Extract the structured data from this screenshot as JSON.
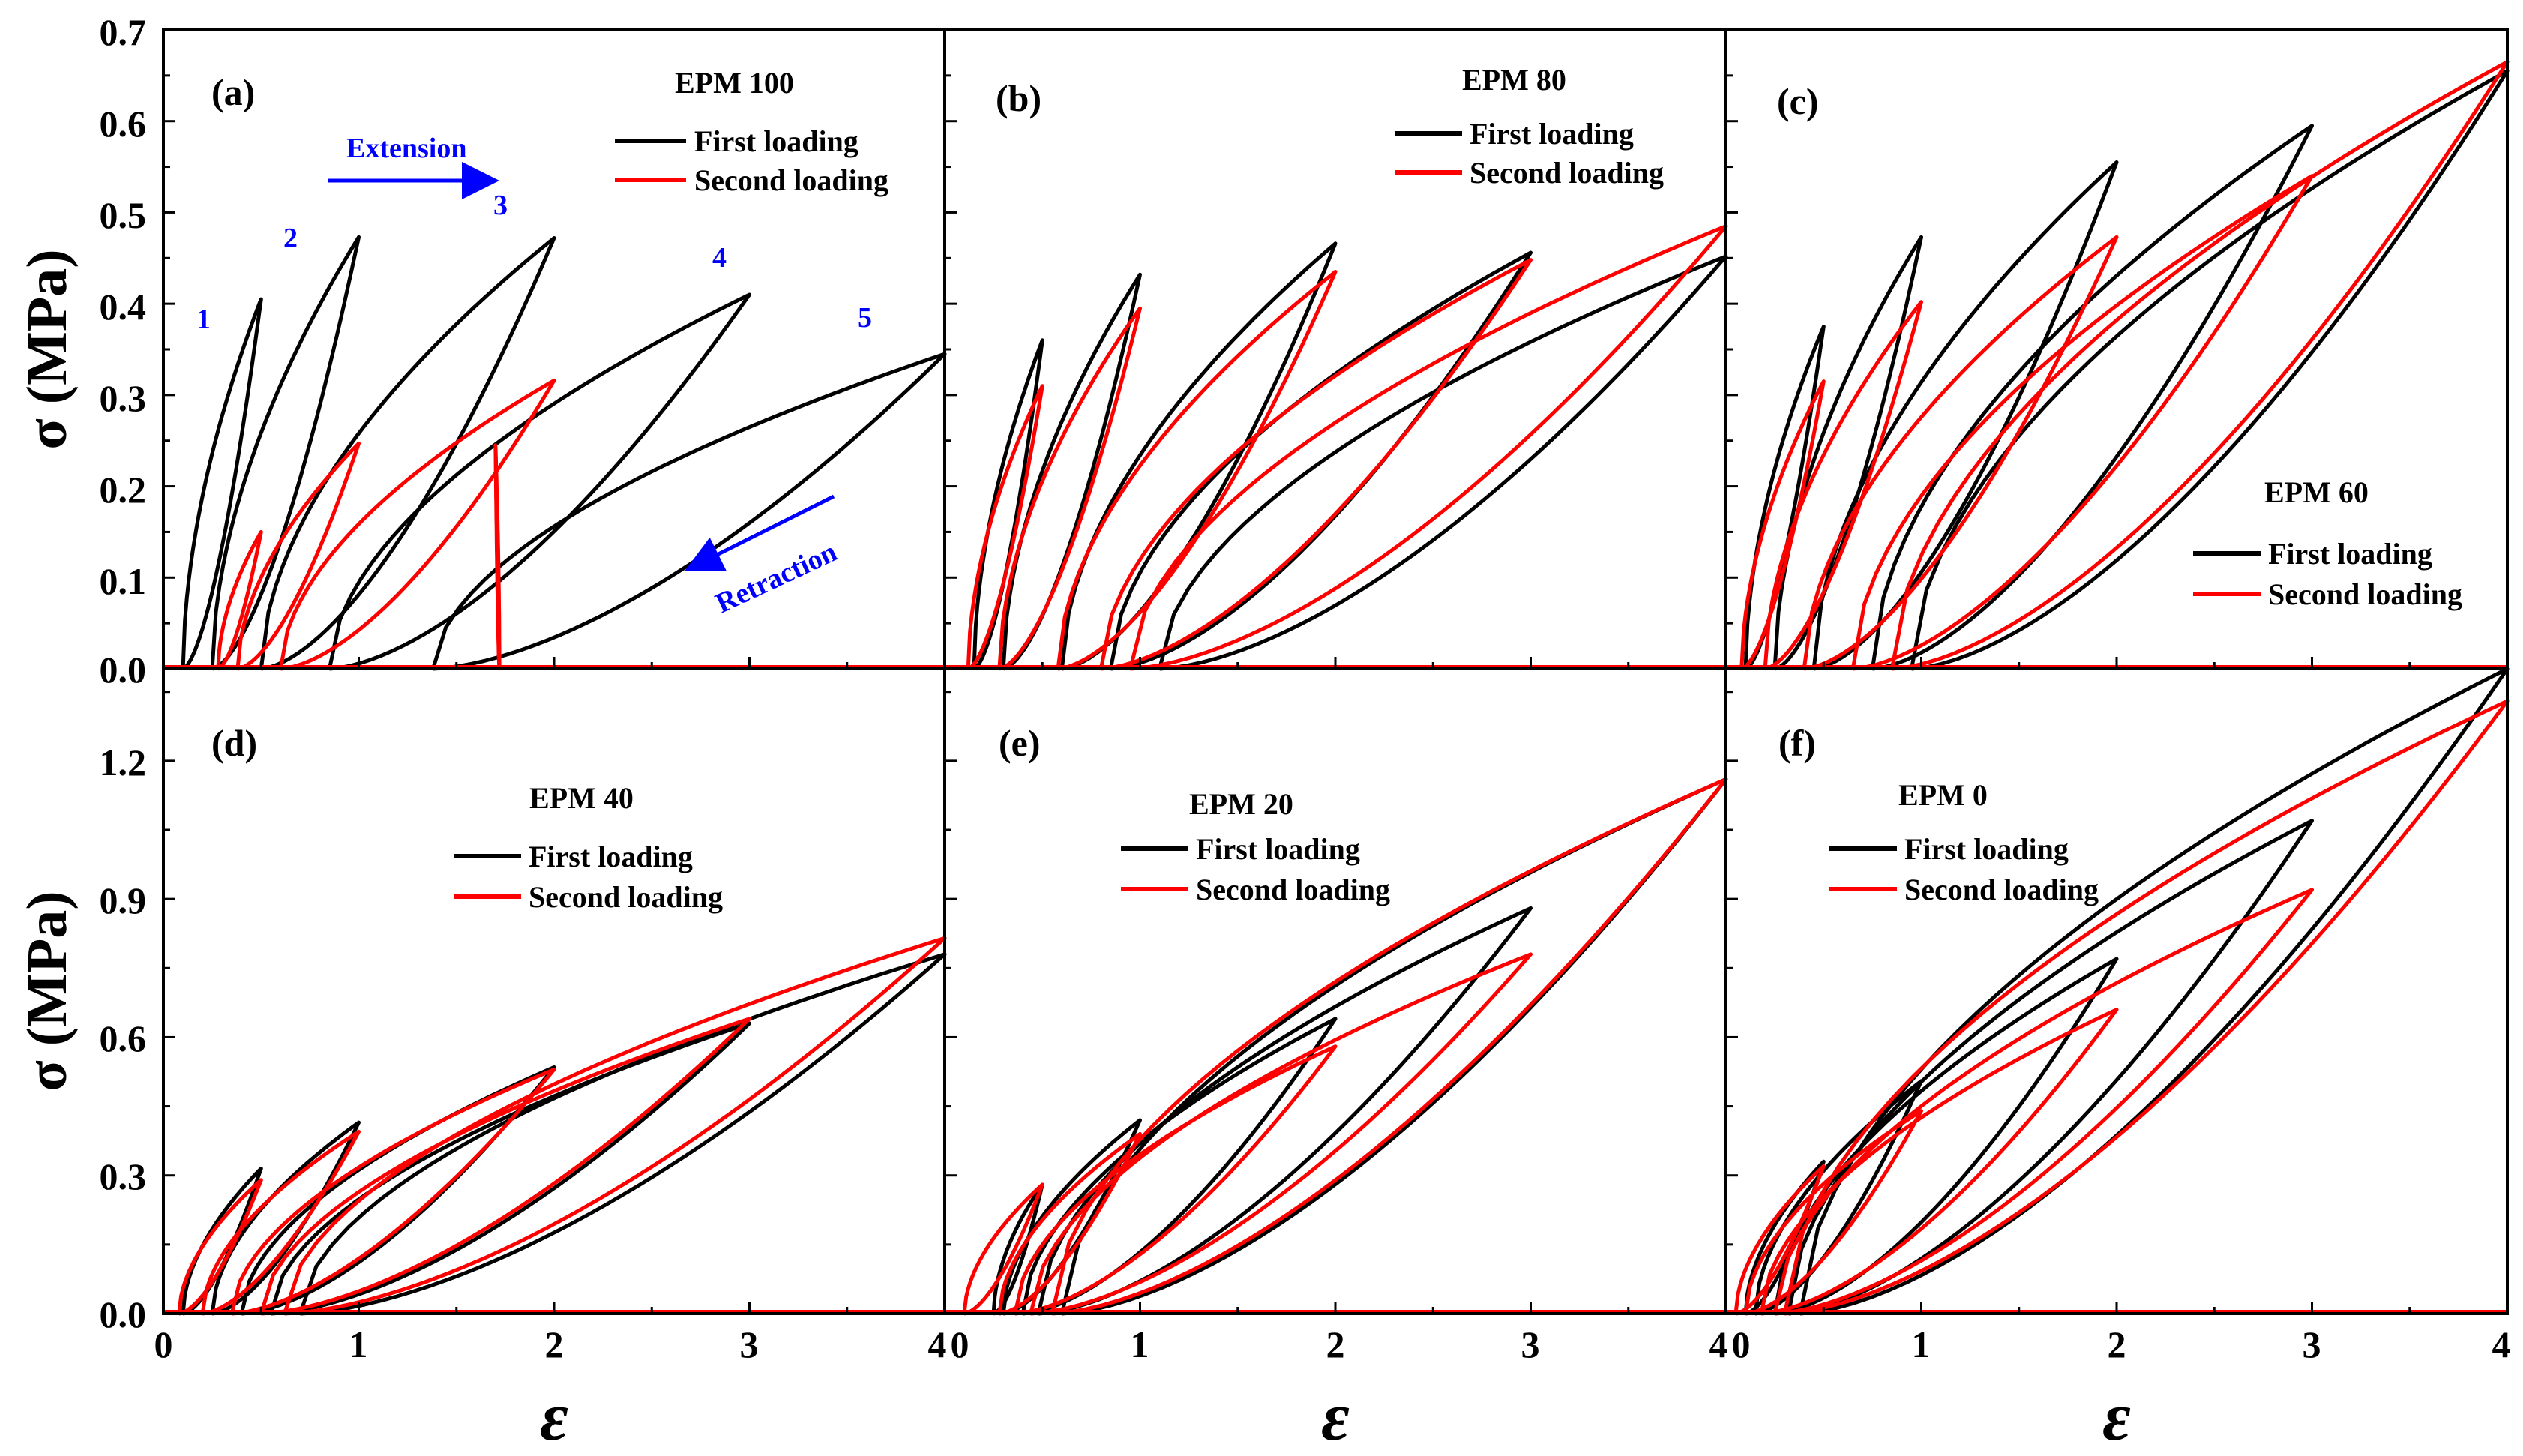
{
  "figure": {
    "ylabel": "σ (MPa)",
    "xlabel": "ε",
    "line_colors": {
      "first": "#000000",
      "second": "#ff0000",
      "annotation": "#0000ff"
    }
  },
  "chart_data": [
    {
      "id": "a",
      "type": "line",
      "panel_label": "(a)",
      "title": "EPM 100",
      "xlim": [
        0,
        4
      ],
      "ylim": [
        0,
        0.7
      ],
      "yticks": [
        "0.0",
        "0.1",
        "0.2",
        "0.3",
        "0.4",
        "0.5",
        "0.6",
        "0.7"
      ],
      "xticks": [
        "0",
        "1",
        "2",
        "3",
        "4"
      ],
      "legend": [
        "First loading",
        "Second loading"
      ],
      "annotations": {
        "extension": "Extension",
        "retraction": "Retraction",
        "cycle_labels": [
          "1",
          "2",
          "3",
          "4",
          "5"
        ]
      },
      "first_cycles": [
        {
          "strain": 0.5,
          "stress": 0.405,
          "residual": 0.1
        },
        {
          "strain": 1.0,
          "stress": 0.473,
          "residual": 0.25
        },
        {
          "strain": 2.0,
          "stress": 0.472,
          "residual": 0.5
        },
        {
          "strain": 3.0,
          "stress": 0.41,
          "residual": 0.85
        },
        {
          "strain": 4.0,
          "stress": 0.345,
          "residual": 1.38
        }
      ],
      "second_cycles": [
        {
          "strain": 0.5,
          "stress": 0.15,
          "residual": 0.28
        },
        {
          "strain": 1.0,
          "stress": 0.247,
          "residual": 0.38
        },
        {
          "strain": 2.0,
          "stress": 0.316,
          "residual": 0.6
        },
        {
          "strain": 1.7,
          "stress": 0.245,
          "residual": 1.72
        }
      ]
    },
    {
      "id": "b",
      "type": "line",
      "panel_label": "(b)",
      "title": "EPM  80",
      "xlim": [
        0,
        4
      ],
      "ylim": [
        0,
        0.7
      ],
      "legend": [
        "First loading",
        "Second loading"
      ],
      "first_cycles": [
        {
          "strain": 0.5,
          "stress": 0.36,
          "residual": 0.15
        },
        {
          "strain": 1.0,
          "stress": 0.432,
          "residual": 0.3
        },
        {
          "strain": 2.0,
          "stress": 0.466,
          "residual": 0.6
        },
        {
          "strain": 3.0,
          "stress": 0.456,
          "residual": 0.85
        },
        {
          "strain": 4.0,
          "stress": 0.452,
          "residual": 1.1
        }
      ],
      "second_cycles": [
        {
          "strain": 0.5,
          "stress": 0.31,
          "residual": 0.12
        },
        {
          "strain": 1.0,
          "stress": 0.395,
          "residual": 0.28
        },
        {
          "strain": 2.0,
          "stress": 0.435,
          "residual": 0.58
        },
        {
          "strain": 3.0,
          "stress": 0.448,
          "residual": 0.8
        },
        {
          "strain": 4.0,
          "stress": 0.485,
          "residual": 0.95
        }
      ]
    },
    {
      "id": "c",
      "type": "line",
      "panel_label": "(c)",
      "title": "EPM  60",
      "xlim": [
        0,
        4
      ],
      "ylim": [
        0,
        0.7
      ],
      "legend": [
        "First loading",
        "Second loading"
      ],
      "first_cycles": [
        {
          "strain": 0.5,
          "stress": 0.375,
          "residual": 0.1
        },
        {
          "strain": 1.0,
          "stress": 0.473,
          "residual": 0.25
        },
        {
          "strain": 2.0,
          "stress": 0.555,
          "residual": 0.45
        },
        {
          "strain": 3.0,
          "stress": 0.595,
          "residual": 0.75
        },
        {
          "strain": 4.0,
          "stress": 0.655,
          "residual": 0.95
        }
      ],
      "second_cycles": [
        {
          "strain": 0.5,
          "stress": 0.315,
          "residual": 0.08
        },
        {
          "strain": 1.0,
          "stress": 0.402,
          "residual": 0.2
        },
        {
          "strain": 2.0,
          "stress": 0.473,
          "residual": 0.4
        },
        {
          "strain": 3.0,
          "stress": 0.54,
          "residual": 0.65
        },
        {
          "strain": 4.0,
          "stress": 0.665,
          "residual": 0.85
        }
      ]
    },
    {
      "id": "d",
      "type": "line",
      "panel_label": "(d)",
      "title": "EPM  40",
      "xlim": [
        0,
        4
      ],
      "ylim": [
        0,
        1.4
      ],
      "yticks": [
        "0.0",
        "0.3",
        "0.6",
        "0.9",
        "1.2"
      ],
      "xticks": [
        "0",
        "1",
        "2",
        "3",
        "4"
      ],
      "legend": [
        "First loading",
        "Second loading"
      ],
      "first_cycles": [
        {
          "strain": 0.5,
          "stress": 0.315,
          "residual": 0.1
        },
        {
          "strain": 1.0,
          "stress": 0.415,
          "residual": 0.25
        },
        {
          "strain": 2.0,
          "stress": 0.535,
          "residual": 0.4
        },
        {
          "strain": 3.0,
          "stress": 0.63,
          "residual": 0.55
        },
        {
          "strain": 4.0,
          "stress": 0.78,
          "residual": 0.7
        }
      ],
      "second_cycles": [
        {
          "strain": 0.5,
          "stress": 0.29,
          "residual": 0.08
        },
        {
          "strain": 1.0,
          "stress": 0.395,
          "residual": 0.2
        },
        {
          "strain": 2.0,
          "stress": 0.53,
          "residual": 0.35
        },
        {
          "strain": 3.0,
          "stress": 0.64,
          "residual": 0.5
        },
        {
          "strain": 4.0,
          "stress": 0.815,
          "residual": 0.62
        }
      ]
    },
    {
      "id": "e",
      "type": "line",
      "panel_label": "(e)",
      "title": "EPM  20",
      "xlim": [
        0,
        4
      ],
      "ylim": [
        0,
        1.4
      ],
      "xticks": [
        "0",
        "1",
        "2",
        "3",
        "4"
      ],
      "legend": [
        "First loading",
        "Second loading"
      ],
      "first_cycles": [
        {
          "strain": 0.5,
          "stress": 0.28,
          "residual": 0.25
        },
        {
          "strain": 1.0,
          "stress": 0.42,
          "residual": 0.3
        },
        {
          "strain": 2.0,
          "stress": 0.64,
          "residual": 0.4
        },
        {
          "strain": 3.0,
          "stress": 0.88,
          "residual": 0.48
        },
        {
          "strain": 4.0,
          "stress": 1.16,
          "residual": 0.6
        }
      ],
      "second_cycles": [
        {
          "strain": 0.5,
          "stress": 0.28,
          "residual": 0.1
        },
        {
          "strain": 1.0,
          "stress": 0.39,
          "residual": 0.28
        },
        {
          "strain": 2.0,
          "stress": 0.58,
          "residual": 0.36
        },
        {
          "strain": 3.0,
          "stress": 0.78,
          "residual": 0.44
        },
        {
          "strain": 4.0,
          "stress": 1.16,
          "residual": 0.55
        }
      ]
    },
    {
      "id": "f",
      "type": "line",
      "panel_label": "(f)",
      "title": "EPM  0",
      "xlim": [
        0,
        4
      ],
      "ylim": [
        0,
        1.4
      ],
      "xticks": [
        "0",
        "1",
        "2",
        "3",
        "4"
      ],
      "legend": [
        "First loading",
        "Second loading"
      ],
      "first_cycles": [
        {
          "strain": 0.5,
          "stress": 0.33,
          "residual": 0.1
        },
        {
          "strain": 1.0,
          "stress": 0.505,
          "residual": 0.15
        },
        {
          "strain": 2.0,
          "stress": 0.77,
          "residual": 0.25
        },
        {
          "strain": 3.0,
          "stress": 1.07,
          "residual": 0.32
        },
        {
          "strain": 4.0,
          "stress": 1.4,
          "residual": 0.38
        }
      ],
      "second_cycles": [
        {
          "strain": 0.5,
          "stress": 0.32,
          "residual": 0.05
        },
        {
          "strain": 1.0,
          "stress": 0.44,
          "residual": 0.1
        },
        {
          "strain": 2.0,
          "stress": 0.66,
          "residual": 0.18
        },
        {
          "strain": 3.0,
          "stress": 0.92,
          "residual": 0.25
        },
        {
          "strain": 4.0,
          "stress": 1.33,
          "residual": 0.3
        }
      ]
    }
  ]
}
